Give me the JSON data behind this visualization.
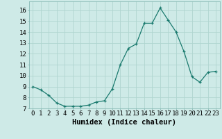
{
  "x": [
    0,
    1,
    2,
    3,
    4,
    5,
    6,
    7,
    8,
    9,
    10,
    11,
    12,
    13,
    14,
    15,
    16,
    17,
    18,
    19,
    20,
    21,
    22,
    23
  ],
  "y": [
    9.0,
    8.7,
    8.2,
    7.5,
    7.2,
    7.2,
    7.2,
    7.3,
    7.6,
    7.7,
    8.8,
    11.0,
    12.5,
    12.9,
    14.8,
    14.8,
    16.2,
    15.1,
    14.0,
    12.2,
    9.9,
    9.4,
    10.3,
    10.4
  ],
  "line_color": "#1a7a6e",
  "marker_color": "#1a7a6e",
  "bg_color": "#ceeae7",
  "grid_color": "#b0d5d0",
  "xlabel": "Humidex (Indice chaleur)",
  "xlim": [
    -0.5,
    23.5
  ],
  "ylim": [
    7,
    16.8
  ],
  "yticks": [
    7,
    8,
    9,
    10,
    11,
    12,
    13,
    14,
    15,
    16
  ],
  "xtick_labels": [
    "0",
    "1",
    "2",
    "3",
    "4",
    "5",
    "6",
    "7",
    "8",
    "9",
    "10",
    "11",
    "12",
    "13",
    "14",
    "15",
    "16",
    "17",
    "18",
    "19",
    "20",
    "21",
    "22",
    "23"
  ],
  "xlabel_fontsize": 7.5,
  "tick_fontsize": 6.5
}
